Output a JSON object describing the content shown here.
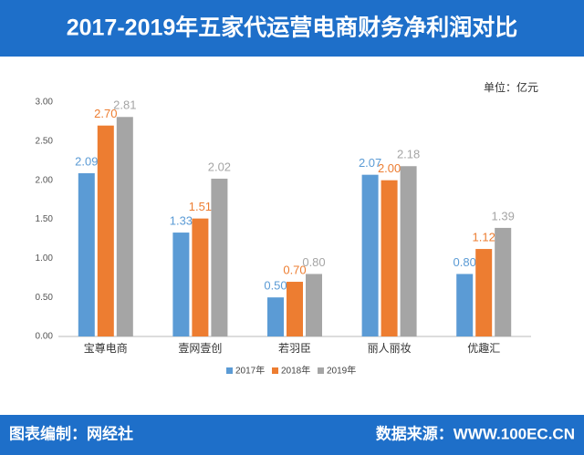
{
  "chart_data": {
    "type": "bar",
    "title": "2017-2019年五家代运营电商财务净利润对比",
    "unit_note": "单位：亿元",
    "footer_left": "图表编制：网经社",
    "footer_right": "数据来源：WWW.100EC.CN",
    "categories": [
      "宝尊电商",
      "壹网壹创",
      "若羽臣",
      "丽人丽妆",
      "优趣汇"
    ],
    "series": [
      {
        "name": "2017年",
        "color": "#5b9bd5",
        "values": [
          2.09,
          1.33,
          0.5,
          2.07,
          0.8
        ],
        "value_labels": [
          "2.09",
          "1.33",
          "0.50",
          "2.07",
          "0.80"
        ]
      },
      {
        "name": "2018年",
        "color": "#ed7d31",
        "values": [
          2.7,
          1.51,
          0.7,
          2.0,
          1.12
        ],
        "value_labels": [
          "2.70",
          "1.51",
          "0.70",
          "2.00",
          "1.12"
        ]
      },
      {
        "name": "2019年",
        "color": "#a5a5a5",
        "values": [
          2.81,
          2.02,
          0.8,
          2.18,
          1.39
        ],
        "value_labels": [
          "2.81",
          "2.02",
          "0.80",
          "2.18",
          "1.39"
        ]
      }
    ],
    "ylim": [
      0,
      3
    ],
    "yticks": [
      {
        "value": 0,
        "label": "0.00"
      },
      {
        "value": 0.5,
        "label": "0.50"
      },
      {
        "value": 1,
        "label": "1.00"
      },
      {
        "value": 1.5,
        "label": "1.50"
      },
      {
        "value": 2,
        "label": "2.00"
      },
      {
        "value": 2.5,
        "label": "2.50"
      },
      {
        "value": 3,
        "label": "3.00"
      }
    ],
    "grid": false,
    "legend": "bottom"
  }
}
